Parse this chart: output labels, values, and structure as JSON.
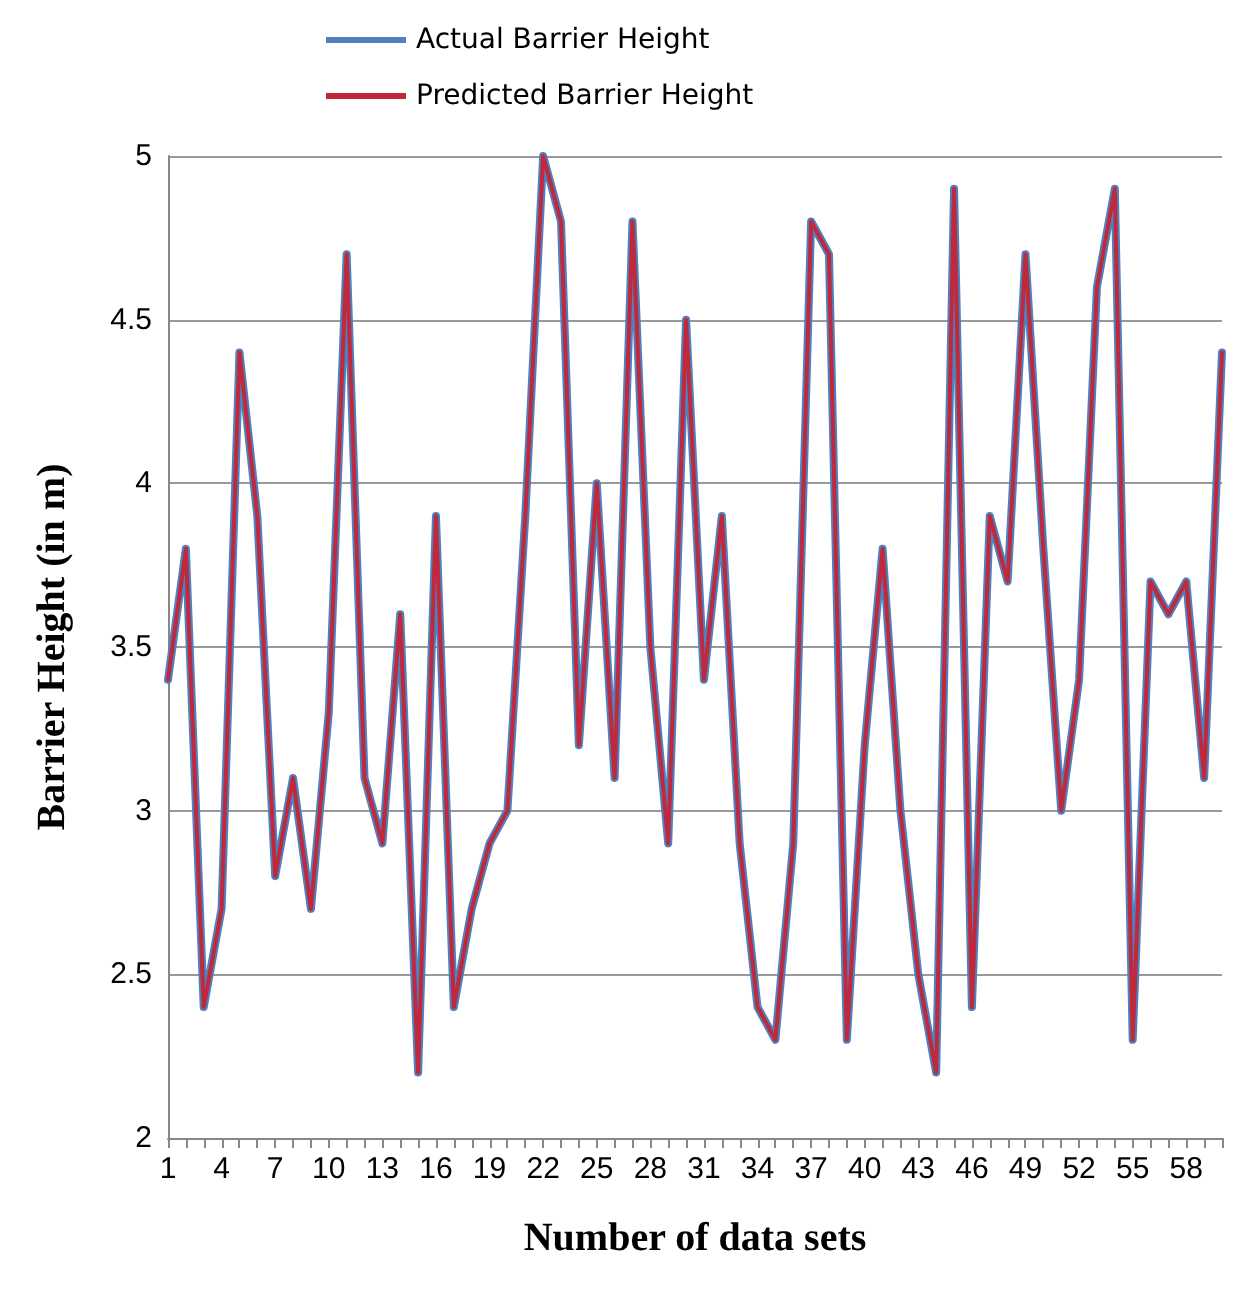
{
  "chart_data": {
    "type": "line",
    "xlabel": "Number of data sets",
    "ylabel": "Barrier Height (in m)",
    "categories": [
      "1",
      null,
      null,
      "4",
      null,
      null,
      "7",
      null,
      null,
      "10",
      null,
      null,
      "13",
      null,
      null,
      "16",
      null,
      null,
      "19",
      null,
      null,
      "22",
      null,
      null,
      "25",
      null,
      null,
      "28",
      null,
      null,
      "31",
      null,
      null,
      "34",
      null,
      null,
      "37",
      null,
      null,
      "40",
      null,
      null,
      "43",
      null,
      null,
      "46",
      null,
      null,
      "49",
      null,
      null,
      "52",
      null,
      null,
      "55",
      null,
      null,
      "58",
      null,
      null
    ],
    "series": [
      {
        "name": "Actual Barrier Height",
        "color": "#4f81bd",
        "values": [
          3.4,
          3.8,
          2.4,
          2.7,
          4.4,
          3.9,
          2.8,
          3.1,
          2.7,
          3.3,
          4.7,
          3.1,
          2.9,
          3.6,
          2.2,
          3.9,
          2.4,
          2.7,
          2.9,
          3.0,
          3.9,
          5.0,
          4.8,
          3.2,
          4.0,
          3.1,
          4.8,
          3.5,
          2.9,
          4.5,
          3.4,
          3.9,
          2.9,
          2.4,
          2.3,
          2.9,
          4.8,
          4.7,
          2.3,
          3.2,
          3.8,
          3.0,
          2.5,
          2.2,
          4.9,
          2.4,
          3.9,
          3.7,
          4.7,
          3.8,
          3.0,
          3.4,
          4.6,
          4.9,
          2.3,
          3.7,
          3.6,
          3.7,
          3.1,
          4.4
        ]
      },
      {
        "name": "Predicted Barrier Height",
        "color": "#c0283c",
        "values": [
          3.4,
          3.8,
          2.4,
          2.7,
          4.4,
          3.9,
          2.8,
          3.1,
          2.7,
          3.3,
          4.7,
          3.1,
          2.9,
          3.6,
          2.2,
          3.9,
          2.4,
          2.7,
          2.9,
          3.0,
          3.9,
          5.0,
          4.8,
          3.2,
          4.0,
          3.1,
          4.8,
          3.5,
          2.9,
          4.5,
          3.4,
          3.9,
          2.9,
          2.4,
          2.3,
          2.9,
          4.8,
          4.7,
          2.3,
          3.2,
          3.8,
          3.0,
          2.5,
          2.2,
          4.9,
          2.4,
          3.9,
          3.7,
          4.7,
          3.8,
          3.0,
          3.4,
          4.6,
          4.9,
          2.3,
          3.7,
          3.6,
          3.7,
          3.1,
          4.4
        ]
      }
    ],
    "ylim": [
      2,
      5
    ],
    "yticks": [
      2,
      2.5,
      3,
      3.5,
      4,
      4.5,
      5
    ],
    "grid": "y",
    "legend": "top",
    "marker": "none",
    "line_style": "solid"
  }
}
